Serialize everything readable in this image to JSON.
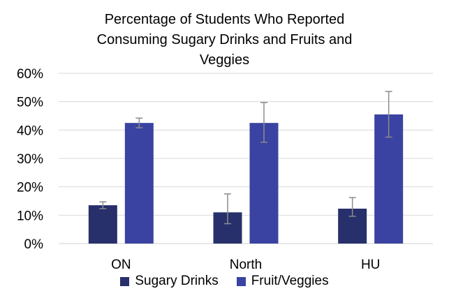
{
  "title_lines": [
    "Percentage of Students Who Reported",
    "Consuming Sugary Drinks and Fruits and",
    "Veggies"
  ],
  "colors": {
    "sugary": "#27306b",
    "fruit": "#3a43a2",
    "error_bar": "#8c8c8c",
    "gridline": "#d9d9d9"
  },
  "chart_data": {
    "type": "bar",
    "title": "Percentage of Students Who Reported Consuming Sugary Drinks and Fruits and Veggies",
    "categories": [
      "ON",
      "North",
      "HU"
    ],
    "series": [
      {
        "name": "Sugary Drinks",
        "values": [
          13.5,
          11,
          12.3
        ],
        "error_low": [
          12.3,
          7,
          9.6
        ],
        "error_high": [
          14.7,
          17.5,
          16.2
        ]
      },
      {
        "name": "Fruit/Veggies",
        "values": [
          42.5,
          42.5,
          45.5
        ],
        "error_low": [
          40.8,
          35.7,
          37.5
        ],
        "error_high": [
          44.2,
          49.7,
          53.6
        ]
      }
    ],
    "ylim": [
      0,
      60
    ],
    "yticks": [
      0,
      10,
      20,
      30,
      40,
      50,
      60
    ],
    "ytick_labels": [
      "0%",
      "10%",
      "20%",
      "30%",
      "40%",
      "50%",
      "60%"
    ],
    "grid": true,
    "legend_position": "bottom"
  }
}
